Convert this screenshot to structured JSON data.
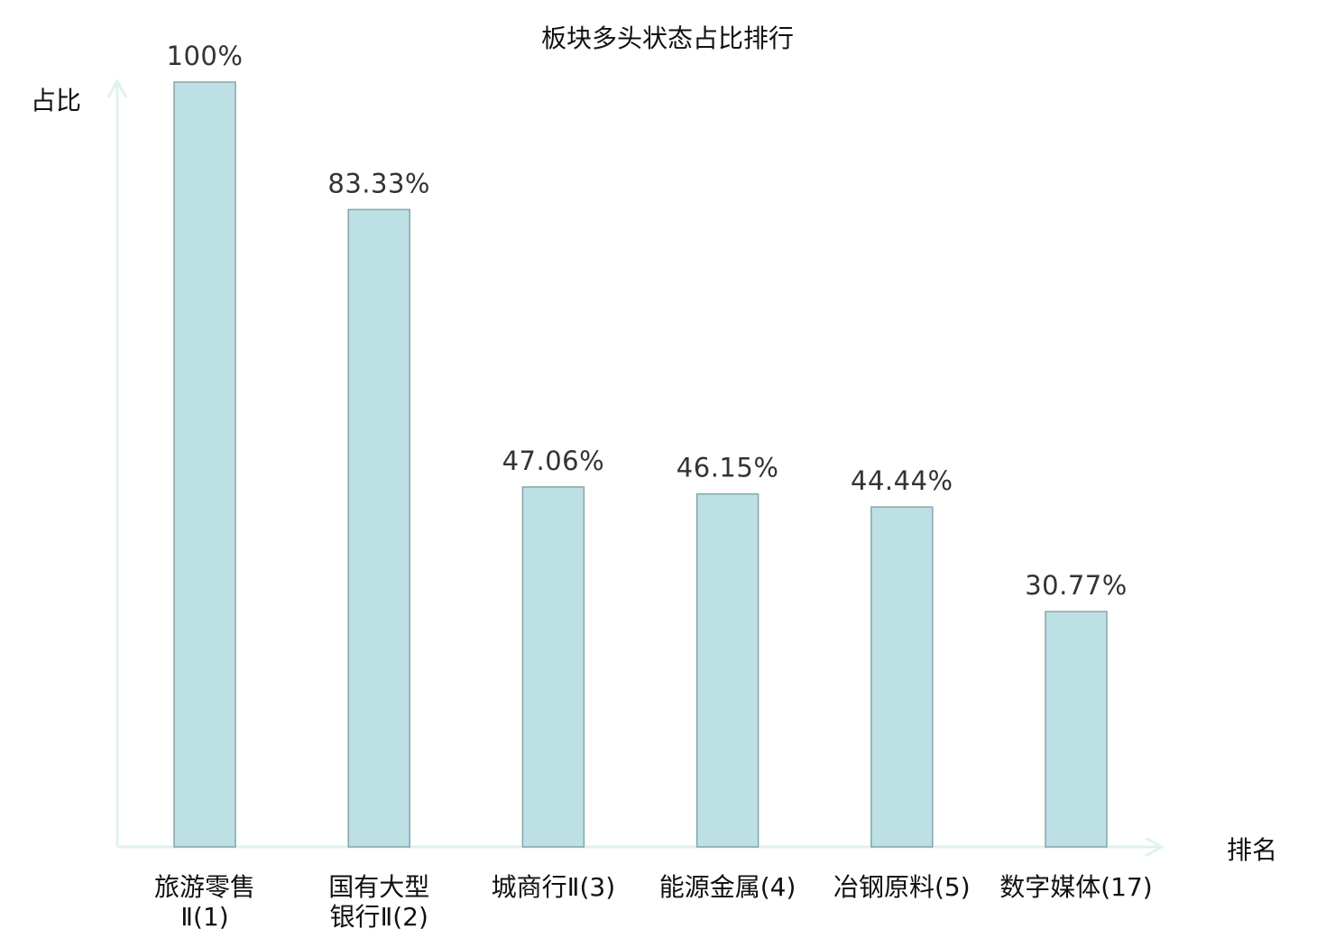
{
  "chart_data": {
    "type": "bar",
    "title": "板块多头状态占比排行",
    "xlabel": "排名",
    "ylabel": "占比",
    "categories": [
      {
        "name": "旅游零售",
        "suffix": "Ⅱ(1)",
        "lines": [
          "旅游零售",
          "Ⅱ(1)"
        ],
        "highlight": false
      },
      {
        "name": "国有大型银行",
        "suffix": "Ⅱ(2)",
        "lines": [
          "国有大型",
          "银行Ⅱ(2)"
        ],
        "highlight": false
      },
      {
        "name": "城商行",
        "suffix": "Ⅱ(3)",
        "lines": [
          "城商行Ⅱ(3)"
        ],
        "highlight": false
      },
      {
        "name": "能源金属",
        "suffix": "(4)",
        "lines": [
          "能源金属(4)"
        ],
        "highlight": false
      },
      {
        "name": "冶钢原料",
        "suffix": "(5)",
        "lines": [
          "冶钢原料(5)"
        ],
        "highlight": false
      },
      {
        "name": "数字媒体",
        "suffix": "(17)",
        "lines": [
          "数字媒体(17)"
        ],
        "highlight": true
      }
    ],
    "values": [
      100,
      83.33,
      47.06,
      46.15,
      44.44,
      30.77
    ],
    "value_labels": [
      "100%",
      "83.33%",
      "47.06%",
      "46.15%",
      "44.44%",
      "30.77%"
    ],
    "ylim": [
      0,
      100
    ],
    "grid": false,
    "legend": "none",
    "colors": {
      "bar_fill": "#bce0e3",
      "bar_stroke": "#86a6a9",
      "axis": "#dff2f0",
      "highlight": "#e60000",
      "text": "#111111"
    }
  }
}
